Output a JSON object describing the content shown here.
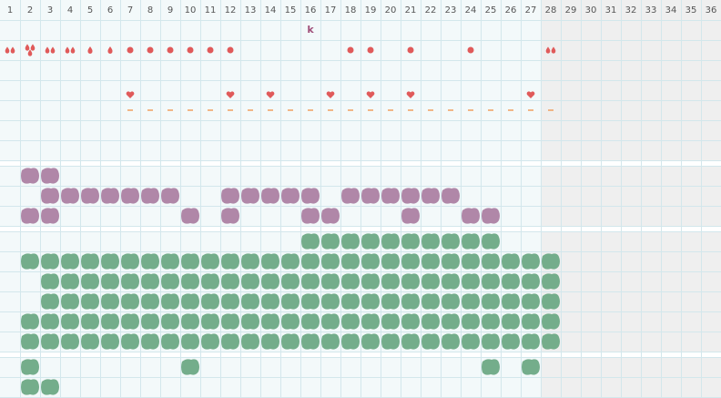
{
  "header": {
    "days": [
      1,
      2,
      3,
      4,
      5,
      6,
      7,
      8,
      9,
      10,
      11,
      12,
      13,
      14,
      15,
      16,
      17,
      18,
      19,
      20,
      21,
      22,
      23,
      24,
      25,
      26,
      27,
      28,
      29,
      30,
      31,
      32,
      33,
      34,
      35,
      36
    ],
    "shaded_from": 28
  },
  "notes": [
    {
      "day": 16,
      "text": "k"
    }
  ],
  "flow": [
    {
      "day": 1,
      "kind": "drops2"
    },
    {
      "day": 2,
      "kind": "drops3"
    },
    {
      "day": 3,
      "kind": "drops2"
    },
    {
      "day": 4,
      "kind": "drops2"
    },
    {
      "day": 5,
      "kind": "drop"
    },
    {
      "day": 6,
      "kind": "drop"
    },
    {
      "day": 7,
      "kind": "dot"
    },
    {
      "day": 8,
      "kind": "dot"
    },
    {
      "day": 9,
      "kind": "dot"
    },
    {
      "day": 10,
      "kind": "dot"
    },
    {
      "day": 11,
      "kind": "dot"
    },
    {
      "day": 12,
      "kind": "dot"
    },
    {
      "day": 18,
      "kind": "dot"
    },
    {
      "day": 19,
      "kind": "dot"
    },
    {
      "day": 21,
      "kind": "dot"
    },
    {
      "day": 24,
      "kind": "dot"
    },
    {
      "day": 28,
      "kind": "drops2"
    }
  ],
  "hearts": [
    7,
    12,
    14,
    17,
    19,
    21,
    27
  ],
  "dashes": [
    7,
    8,
    9,
    10,
    11,
    12,
    13,
    14,
    15,
    16,
    17,
    18,
    19,
    20,
    21,
    22,
    23,
    24,
    25,
    26,
    27,
    28
  ],
  "purple_rows": [
    [
      2,
      3
    ],
    [
      3,
      4,
      5,
      6,
      7,
      8,
      9,
      12,
      13,
      14,
      15,
      16,
      18,
      19,
      20,
      21,
      22,
      23
    ],
    [
      2,
      3,
      10,
      12,
      16,
      17,
      21,
      24,
      25
    ]
  ],
  "green_rows": [
    [
      16,
      17,
      18,
      19,
      20,
      21,
      22,
      23,
      24,
      25
    ],
    [
      2,
      3,
      4,
      5,
      6,
      7,
      8,
      9,
      10,
      11,
      12,
      13,
      14,
      15,
      16,
      17,
      18,
      19,
      20,
      21,
      22,
      23,
      24,
      25,
      26,
      27,
      28
    ],
    [
      3,
      4,
      5,
      6,
      7,
      8,
      9,
      10,
      11,
      12,
      13,
      14,
      15,
      16,
      17,
      18,
      19,
      20,
      21,
      22,
      23,
      24,
      25,
      26,
      27,
      28
    ],
    [
      3,
      4,
      5,
      6,
      7,
      8,
      9,
      10,
      11,
      12,
      13,
      14,
      15,
      16,
      17,
      18,
      19,
      20,
      21,
      22,
      23,
      24,
      25,
      26,
      27,
      28
    ],
    [
      2,
      3,
      4,
      5,
      6,
      7,
      8,
      9,
      10,
      11,
      12,
      13,
      14,
      15,
      16,
      17,
      18,
      19,
      20,
      21,
      22,
      23,
      24,
      25,
      26,
      27,
      28
    ],
    [
      2,
      3,
      4,
      5,
      6,
      7,
      8,
      9,
      10,
      11,
      12,
      13,
      14,
      15,
      16,
      17,
      18,
      19,
      20,
      21,
      22,
      23,
      24,
      25,
      26,
      27,
      28
    ]
  ],
  "bottom_rows": [
    [
      2,
      10,
      25,
      27
    ],
    [
      2,
      3
    ]
  ]
}
